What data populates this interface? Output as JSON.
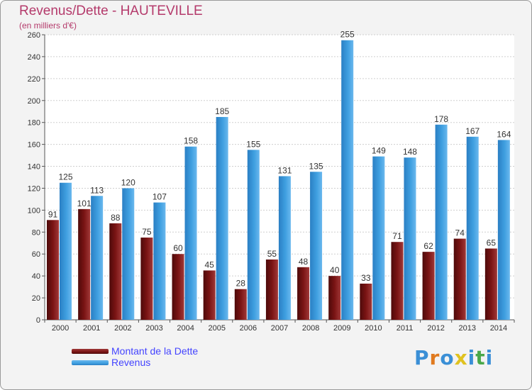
{
  "title": "Revenus/Dette - HAUTEVILLE",
  "subtitle": "(en milliers d'€)",
  "colors": {
    "dette": "#7a1414",
    "revenus": "#3f9fe0",
    "title": "#b43a6b",
    "legend_text": "#4444ff"
  },
  "chart_data": {
    "type": "bar",
    "title": "Revenus/Dette - HAUTEVILLE",
    "ylabel": "(en milliers d'€)",
    "xlabel": "",
    "ylim": [
      0,
      260
    ],
    "yticks": [
      0,
      20,
      40,
      60,
      80,
      100,
      120,
      140,
      160,
      180,
      200,
      220,
      240,
      260
    ],
    "grid": true,
    "categories": [
      "2000",
      "2001",
      "2002",
      "2003",
      "2004",
      "2005",
      "2006",
      "2007",
      "2008",
      "2009",
      "2010",
      "2011",
      "2012",
      "2013",
      "2014"
    ],
    "series": [
      {
        "name": "Montant de la Dette",
        "values": [
          91,
          101,
          88,
          75,
          60,
          45,
          28,
          55,
          48,
          40,
          33,
          71,
          62,
          74,
          65
        ]
      },
      {
        "name": "Revenus",
        "values": [
          125,
          113,
          120,
          107,
          158,
          185,
          155,
          131,
          135,
          255,
          149,
          148,
          178,
          167,
          164
        ]
      }
    ],
    "legend_position": "bottom-left"
  },
  "legend": {
    "items": [
      "Montant de la Dette",
      "Revenus"
    ]
  },
  "logo": {
    "letters": [
      "P",
      "r",
      "o",
      "x",
      "i",
      "t",
      "i"
    ]
  }
}
